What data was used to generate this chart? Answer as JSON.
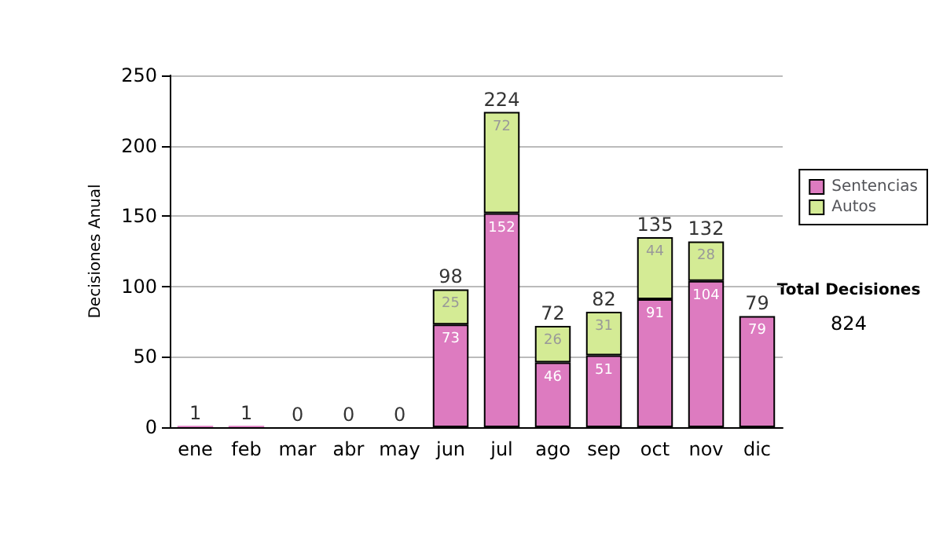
{
  "chart_data": {
    "type": "bar",
    "stacked": true,
    "ylabel": "Decisiones Anual",
    "categories": [
      "ene",
      "feb",
      "mar",
      "abr",
      "may",
      "jun",
      "jul",
      "ago",
      "sep",
      "oct",
      "nov",
      "dic"
    ],
    "series": [
      {
        "name": "Sentencias",
        "color": "#dd7bc0",
        "values": [
          1,
          1,
          0,
          0,
          0,
          73,
          152,
          46,
          51,
          91,
          104,
          79
        ],
        "value_labels": [
          null,
          null,
          null,
          null,
          null,
          "73",
          "152",
          "46",
          "51",
          "91",
          "104",
          "79"
        ]
      },
      {
        "name": "Autos",
        "color": "#d4eb95",
        "values": [
          0,
          0,
          0,
          0,
          0,
          25,
          72,
          26,
          31,
          44,
          28,
          0
        ],
        "value_labels": [
          null,
          null,
          null,
          null,
          null,
          "25",
          "72",
          "26",
          "31",
          "44",
          "28",
          null
        ]
      }
    ],
    "totals": [
      "1",
      "1",
      "0",
      "0",
      "0",
      "98",
      "224",
      "72",
      "82",
      "135",
      "132",
      "79"
    ],
    "ylim": [
      0,
      250
    ],
    "yticks": [
      0,
      50,
      100,
      150,
      200,
      250
    ],
    "grid": "y",
    "legend": "right",
    "annotations": [
      "Total Decisiones",
      "824"
    ]
  }
}
